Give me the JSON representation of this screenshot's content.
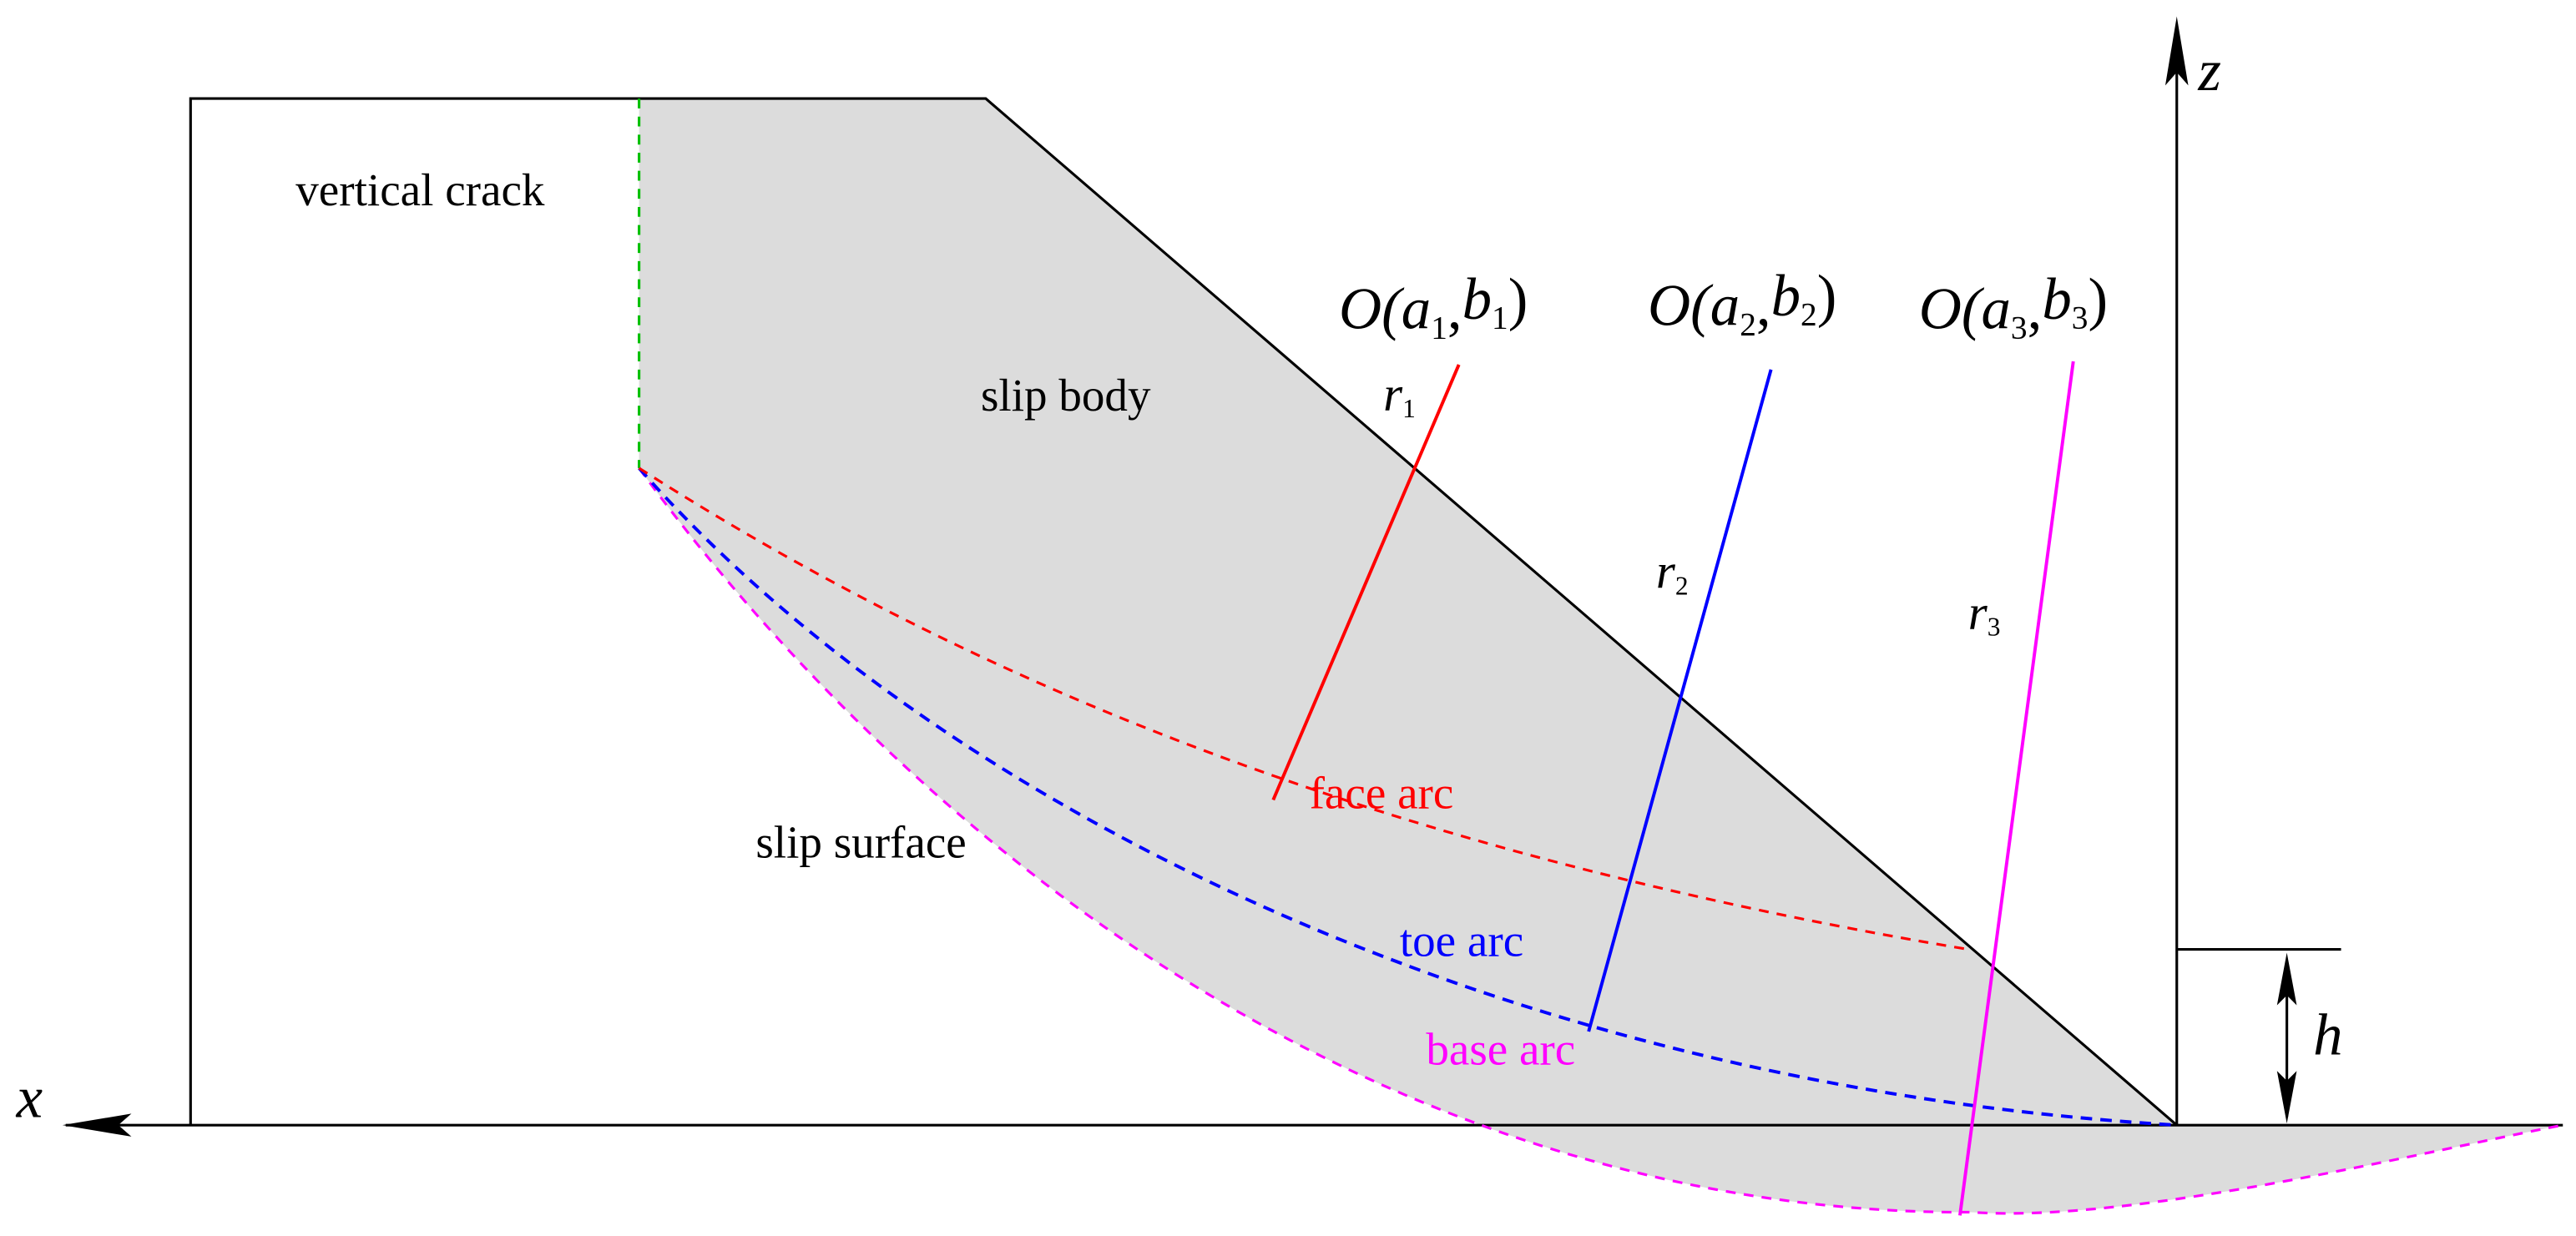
{
  "labels": {
    "vertical_crack": "vertical crack",
    "slip_body": "slip body",
    "slip_surface": "slip surface",
    "face_arc": "face arc",
    "toe_arc": "toe arc",
    "base_arc": "base arc",
    "x_axis": "x",
    "z_axis": "z",
    "height": "h"
  },
  "centers": [
    {
      "label": [
        "O(",
        "a",
        "1",
        ",",
        "b",
        "1",
        ")"
      ],
      "radius": [
        "r",
        "1"
      ]
    },
    {
      "label": [
        "O(",
        "a",
        "2",
        ",",
        "b",
        "2",
        ")"
      ],
      "radius": [
        "r",
        "2"
      ]
    },
    {
      "label": [
        "O(",
        "a",
        "3",
        ",",
        "b",
        "3",
        ")"
      ],
      "radius": [
        "r",
        "3"
      ]
    }
  ]
}
